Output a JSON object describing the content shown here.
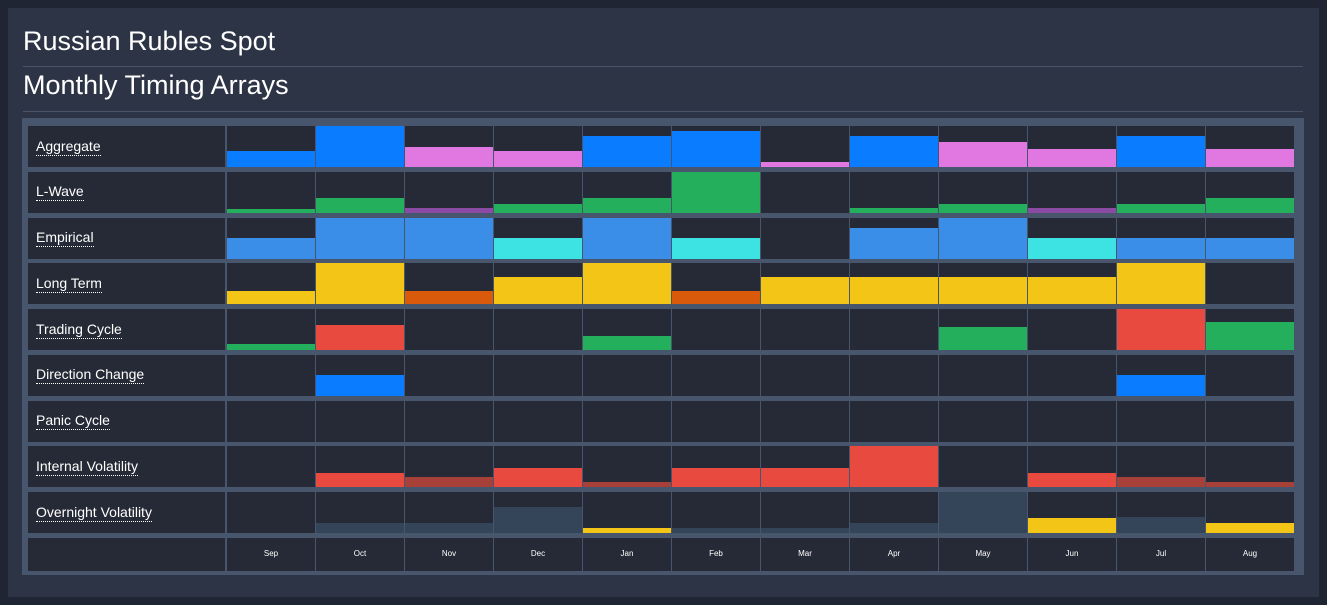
{
  "header": {
    "title": "Russian Rubles Spot",
    "subtitle": "Monthly Timing Arrays"
  },
  "chart_data": {
    "type": "heatmap",
    "categories": [
      "Sep",
      "Oct",
      "Nov",
      "Dec",
      "Jan",
      "Feb",
      "Mar",
      "Apr",
      "May",
      "Jun",
      "Jul",
      "Aug"
    ],
    "value_scale": [
      0,
      1
    ],
    "colors": {
      "blue": "#0a7cff",
      "pink": "#e178e2",
      "green": "#24af5d",
      "purple": "#8b4aa3",
      "sky": "#3a8ee8",
      "cyan": "#3de3e3",
      "yellow": "#f2c516",
      "orange": "#d95a0b",
      "red": "#e84a40",
      "dark_red": "#a8403a",
      "slate": "#34455a",
      "slate_light": "#3a4a60"
    },
    "rows": [
      {
        "name": "Aggregate",
        "values": [
          0.38,
          1.0,
          0.5,
          0.38,
          0.75,
          0.88,
          0.12,
          0.75,
          0.62,
          0.44,
          0.75,
          0.44
        ],
        "colors": [
          "blue",
          "blue",
          "pink",
          "pink",
          "blue",
          "blue",
          "pink",
          "blue",
          "pink",
          "pink",
          "blue",
          "pink"
        ]
      },
      {
        "name": "L-Wave",
        "values": [
          0.1,
          0.36,
          0.12,
          0.22,
          0.36,
          1.0,
          0,
          0.12,
          0.22,
          0.12,
          0.22,
          0.36
        ],
        "colors": [
          "green",
          "green",
          "purple",
          "green",
          "green",
          "green",
          "green",
          "green",
          "green",
          "purple",
          "green",
          "green"
        ]
      },
      {
        "name": "Empirical",
        "values": [
          0.5,
          1.0,
          1.0,
          0.5,
          1.0,
          0.5,
          0,
          0.75,
          1.0,
          0.5,
          0.5,
          0.5
        ],
        "colors": [
          "sky",
          "sky",
          "sky",
          "cyan",
          "sky",
          "cyan",
          "sky",
          "sky",
          "sky",
          "cyan",
          "sky",
          "sky"
        ]
      },
      {
        "name": "Long Term",
        "values": [
          0.33,
          1.0,
          0.33,
          0.66,
          1.0,
          0.33,
          0.66,
          0.66,
          0.66,
          0.66,
          1.0,
          0
        ],
        "colors": [
          "yellow",
          "yellow",
          "orange",
          "yellow",
          "yellow",
          "orange",
          "yellow",
          "yellow",
          "yellow",
          "yellow",
          "yellow",
          "yellow"
        ]
      },
      {
        "name": "Trading Cycle",
        "values": [
          0.15,
          0.6,
          0,
          0,
          0.35,
          0,
          0,
          0,
          0.55,
          0,
          1.0,
          0.68
        ],
        "colors": [
          "green",
          "red",
          "green",
          "green",
          "green",
          "green",
          "green",
          "green",
          "green",
          "green",
          "red",
          "green"
        ]
      },
      {
        "name": "Direction Change",
        "values": [
          0,
          0.5,
          0,
          0,
          0,
          0,
          0,
          0,
          0,
          0,
          0.5,
          0
        ],
        "colors": [
          "blue",
          "blue",
          "blue",
          "blue",
          "blue",
          "blue",
          "blue",
          "blue",
          "blue",
          "blue",
          "blue",
          "blue"
        ]
      },
      {
        "name": "Panic Cycle",
        "values": [
          0,
          0,
          0,
          0,
          0,
          0,
          0,
          0,
          0,
          0,
          0,
          0
        ],
        "colors": [
          "red",
          "red",
          "red",
          "red",
          "red",
          "red",
          "red",
          "red",
          "red",
          "red",
          "red",
          "red"
        ]
      },
      {
        "name": "Internal Volatility",
        "values": [
          0,
          0.36,
          0.24,
          0.48,
          0.12,
          0.48,
          0.48,
          1.0,
          0,
          0.36,
          0.24,
          0.12
        ],
        "colors": [
          "red",
          "red",
          "dark_red",
          "red",
          "dark_red",
          "red",
          "red",
          "red",
          "red",
          "red",
          "dark_red",
          "dark_red"
        ]
      },
      {
        "name": "Overnight Volatility",
        "values": [
          0,
          0.24,
          0.24,
          0.64,
          0.12,
          0.12,
          0.12,
          0.24,
          1.0,
          0.36,
          0.38,
          0.24
        ],
        "colors": [
          "slate",
          "slate",
          "slate",
          "slate",
          "yellow",
          "slate",
          "slate",
          "slate",
          "slate",
          "yellow",
          "slate",
          "yellow"
        ]
      }
    ]
  }
}
